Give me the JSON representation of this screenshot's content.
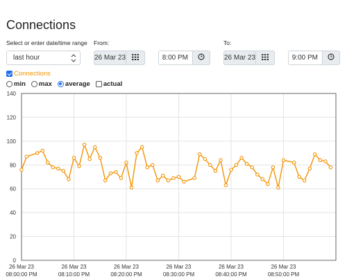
{
  "page": {
    "title": "Connections"
  },
  "range": {
    "label": "Select or enter date/time range",
    "selected": "last hour"
  },
  "from": {
    "label": "From:",
    "date": "26 Mar 23",
    "time": "8:00 PM"
  },
  "to": {
    "label": "To:",
    "date": "26 Mar 23",
    "time": "9:00 PM"
  },
  "series_toggle": {
    "label": "Connections",
    "checked": true
  },
  "aggregation": {
    "options": [
      "min",
      "max",
      "average"
    ],
    "selected": "average",
    "actual_label": "actual"
  },
  "icons": {
    "calendar": "calendar-icon",
    "clock": "clock-icon",
    "dropdown": "chevron-down-icon"
  },
  "colors": {
    "series": "#f39200",
    "checkbox": "#1f6feb"
  },
  "chart_data": {
    "type": "line",
    "title": "",
    "xlabel": "",
    "ylabel": "",
    "ylim": [
      0,
      140
    ],
    "yticks": [
      "0",
      "20",
      "40",
      "60",
      "80",
      "100",
      "120",
      "140"
    ],
    "xlim": [
      "2023-03-26 08:00:00 PM",
      "2023-03-26 09:00:00 PM"
    ],
    "xticks": [
      {
        "date": "26 Mar 23",
        "time": "08:00:00 PM"
      },
      {
        "date": "26 Mar 23",
        "time": "08:10:00 PM"
      },
      {
        "date": "26 Mar 23",
        "time": "08:20:00 PM"
      },
      {
        "date": "26 Mar 23",
        "time": "08:30:00 PM"
      },
      {
        "date": "26 Mar 23",
        "time": "08:40:00 PM"
      },
      {
        "date": "26 Mar 23",
        "time": "08:50:00 PM"
      }
    ],
    "grid": true,
    "series": [
      {
        "name": "Connections",
        "color": "#f39200",
        "x": [
          "20:00:00",
          "20:01:00",
          "20:03:00",
          "20:04:00",
          "20:05:00",
          "20:06:00",
          "20:07:00",
          "20:08:00",
          "20:09:00",
          "20:10:00",
          "20:11:00",
          "20:12:00",
          "20:13:00",
          "20:14:00",
          "20:15:00",
          "20:16:00",
          "20:17:00",
          "20:18:00",
          "20:19:00",
          "20:20:00",
          "20:21:00",
          "20:22:00",
          "20:23:00",
          "20:24:00",
          "20:25:00",
          "20:26:00",
          "20:27:00",
          "20:28:00",
          "20:29:00",
          "20:30:00",
          "20:31:00",
          "20:33:00",
          "20:34:00",
          "20:35:00",
          "20:36:00",
          "20:37:00",
          "20:38:00",
          "20:39:00",
          "20:40:00",
          "20:41:00",
          "20:42:00",
          "20:43:00",
          "20:44:00",
          "20:45:00",
          "20:46:00",
          "20:47:00",
          "20:48:00",
          "20:49:00",
          "20:50:00",
          "20:52:00",
          "20:53:00",
          "20:54:00",
          "20:55:00",
          "20:56:00",
          "20:57:00",
          "20:58:00",
          "20:59:00"
        ],
        "y": [
          76,
          87,
          90,
          92,
          82,
          78,
          77,
          75,
          68,
          86,
          79,
          97,
          85,
          95,
          86,
          67,
          73,
          74,
          69,
          82,
          61,
          90,
          95,
          78,
          80,
          67,
          71,
          67,
          69,
          70,
          66,
          69,
          89,
          85,
          80,
          75,
          84,
          63,
          76,
          80,
          86,
          81,
          78,
          72,
          68,
          64,
          78,
          61,
          84,
          82,
          70,
          67,
          77,
          89,
          84,
          83,
          78
        ]
      }
    ]
  }
}
